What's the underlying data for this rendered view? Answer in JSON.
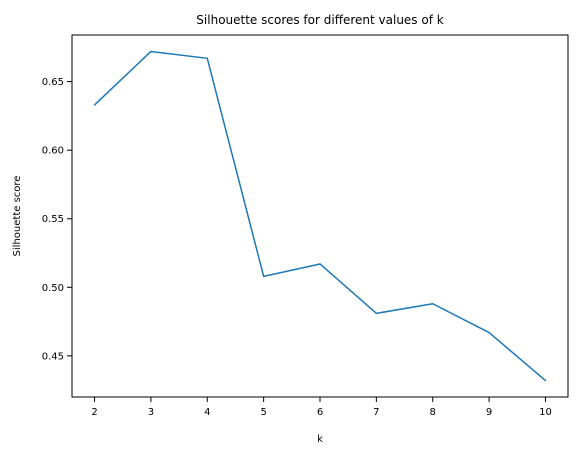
{
  "chart_data": {
    "type": "line",
    "title": "Silhouette scores for different values of k",
    "xlabel": "k",
    "ylabel": "Silhouette score",
    "x": [
      2,
      3,
      4,
      5,
      6,
      7,
      8,
      9,
      10
    ],
    "series": [
      {
        "values": [
          0.633,
          0.672,
          0.667,
          0.508,
          0.517,
          0.481,
          0.488,
          0.467,
          0.432
        ],
        "color": "#1f77b4"
      }
    ],
    "xticks": [
      "2",
      "3",
      "4",
      "5",
      "6",
      "7",
      "8",
      "9",
      "10"
    ],
    "yticks": [
      "0.45",
      "0.50",
      "0.55",
      "0.60",
      "0.65"
    ],
    "xlim": [
      1.6,
      10.4
    ],
    "ylim": [
      0.42,
      0.684
    ],
    "grid": false,
    "legend": "none"
  }
}
